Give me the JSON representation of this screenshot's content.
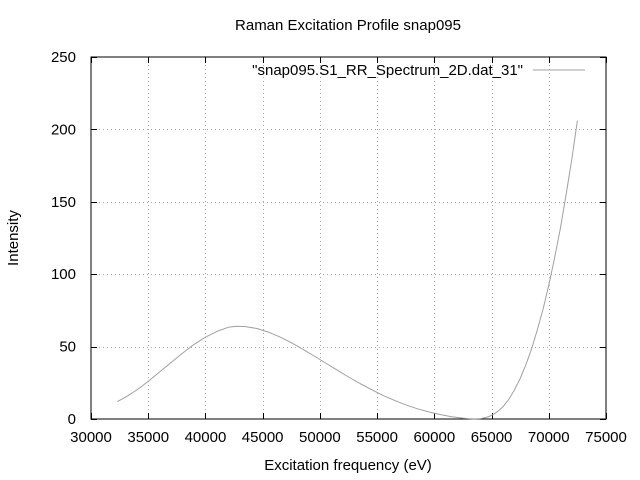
{
  "chart_data": {
    "type": "line",
    "title": "Raman Excitation Profile snap095",
    "xlabel": "Excitation frequency (eV)",
    "ylabel": "Intensity",
    "xlim": [
      30000,
      75000
    ],
    "ylim": [
      0,
      250
    ],
    "xticks": [
      30000,
      35000,
      40000,
      45000,
      50000,
      55000,
      60000,
      65000,
      70000,
      75000
    ],
    "yticks": [
      0,
      50,
      100,
      150,
      200,
      250
    ],
    "xtick_labels": [
      "30000",
      "35000",
      "40000",
      "45000",
      "50000",
      "55000",
      "60000",
      "65000",
      "70000",
      "75000"
    ],
    "ytick_labels": [
      "0",
      "50",
      "100",
      "150",
      "200",
      "250"
    ],
    "grid": true,
    "legend_position": "top-right",
    "series": [
      {
        "name": "\"snap095.S1_RR_Spectrum_2D.dat_31\"",
        "color": "#a0a0a0",
        "x": [
          32300,
          33000,
          34000,
          35000,
          36000,
          37000,
          38000,
          39000,
          40000,
          41000,
          42000,
          42700,
          43500,
          44500,
          45500,
          46500,
          47500,
          48500,
          49500,
          50500,
          51500,
          52500,
          53500,
          54500,
          55500,
          56500,
          57500,
          58500,
          59500,
          60500,
          61500,
          62500,
          63000,
          63500,
          64000,
          64500,
          65000,
          65500,
          66000,
          66500,
          67000,
          67500,
          68000,
          68500,
          69000,
          69500,
          70000,
          70500,
          71000,
          71500,
          72000,
          72500
        ],
        "y": [
          12,
          15,
          20,
          26,
          32.5,
          39,
          45.5,
          51.5,
          56.5,
          60.5,
          63.3,
          64,
          63.8,
          62.5,
          60,
          56.7,
          52.7,
          48.2,
          43.5,
          38.7,
          33.8,
          29,
          24.5,
          20.3,
          16.4,
          12.9,
          9.8,
          7.1,
          4.9,
          3.1,
          1.6,
          0.6,
          0.3,
          0.1,
          0.3,
          1,
          2.5,
          5,
          8.5,
          13.5,
          20,
          28,
          37.5,
          48.5,
          61.5,
          76,
          92.5,
          111,
          131,
          154,
          179,
          206
        ]
      }
    ]
  }
}
